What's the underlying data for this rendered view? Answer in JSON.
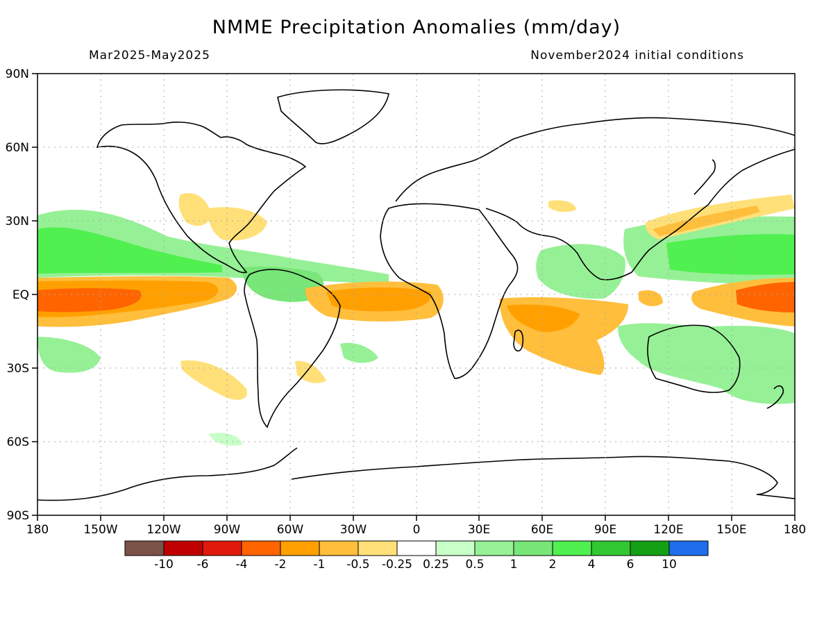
{
  "header": {
    "title": "NMME Precipitation Anomalies (mm/day)",
    "period": "Mar2025-May2025",
    "init": "November2024 initial conditions"
  },
  "axes": {
    "lon_ticks": [
      "180",
      "150W",
      "120W",
      "90W",
      "60W",
      "30W",
      "0",
      "30E",
      "60E",
      "90E",
      "120E",
      "150E",
      "180"
    ],
    "lat_ticks": [
      "90N",
      "60N",
      "30N",
      "EQ",
      "30S",
      "60S",
      "90S"
    ]
  },
  "colorbar": {
    "colors": [
      "#7a5248",
      "#c00000",
      "#e01a0a",
      "#ff6400",
      "#ffa000",
      "#ffbe3c",
      "#ffe078",
      "#ffffff",
      "#c8ffc8",
      "#96f096",
      "#78e678",
      "#50f050",
      "#32c832",
      "#14a014",
      "#1e6eeb"
    ],
    "labels": [
      "-10",
      "-6",
      "-4",
      "-2",
      "-1",
      "-0.5",
      "-0.25",
      "0.25",
      "0.5",
      "1",
      "2",
      "4",
      "6",
      "10"
    ]
  },
  "map_data": {
    "regions": [
      {
        "name": "Equatorial central/eastern Pacific",
        "sign": "dry",
        "peak_mm_day": -3
      },
      {
        "name": "Equatorial Atlantic / NE Brazil",
        "sign": "dry",
        "peak_mm_day": -2
      },
      {
        "name": "Western Indian Ocean / Madagascar",
        "sign": "dry",
        "peak_mm_day": -2
      },
      {
        "name": "Western equatorial Pacific",
        "sign": "dry",
        "peak_mm_day": -3
      },
      {
        "name": "Subtropical North Pacific",
        "sign": "wet",
        "peak_mm_day": 1
      },
      {
        "name": "Western Pacific warm pool",
        "sign": "wet",
        "peak_mm_day": 2
      },
      {
        "name": "Amazon / tropical Atlantic",
        "sign": "wet",
        "peak_mm_day": 1
      },
      {
        "name": "Eastern Indian Ocean",
        "sign": "wet",
        "peak_mm_day": 1
      }
    ]
  }
}
